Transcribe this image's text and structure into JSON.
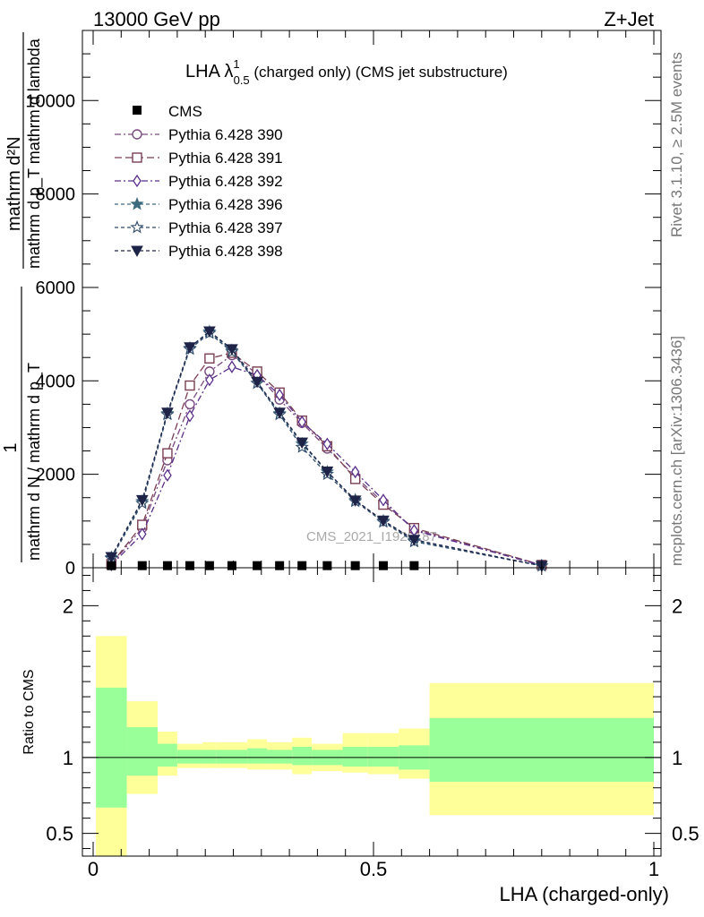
{
  "header": {
    "energy": "13000 GeV pp",
    "process": "Z+Jet"
  },
  "side": {
    "rivet": "Rivet 3.1.10, ≥ 2.5M events",
    "mcplots": "mcplots.cern.ch [arXiv:1306.3436]"
  },
  "colors": {
    "pythia390": "#7a4a80",
    "pythia391": "#7a3f52",
    "pythia392": "#5a2f8a",
    "pythia396": "#3e6a80",
    "pythia397": "#2e4a6a",
    "pythia398": "#1e2448",
    "band_inner": "#99ff99",
    "band_outer": "#ffff99"
  },
  "chart_data": [
    {
      "type": "line",
      "title_main": "LHA λ",
      "title_sup": "1",
      "title_sub": "0.5",
      "title_rest": " (charged only) (CMS jet substructure)",
      "ylabel_num": "mathrm d²N",
      "ylabel_den": "mathrm d p_T mathrm d lambda",
      "ylabel_prefix_num": "1",
      "ylabel_prefix_den": "mathrm d N / mathrm d p_T",
      "watermark": "CMS_2021_I1920187",
      "xlim": [
        0,
        1
      ],
      "ylim": [
        0,
        11500
      ],
      "yticks": [
        0,
        2000,
        4000,
        6000,
        8000,
        10000
      ],
      "ytick_labels": [
        "0",
        "2000",
        "4000",
        "6000",
        "8000",
        "10000"
      ],
      "x": [
        0.0325,
        0.0875,
        0.1325,
        0.1725,
        0.2075,
        0.2475,
        0.2925,
        0.3325,
        0.3725,
        0.4175,
        0.4675,
        0.5175,
        0.5725,
        0.8
      ],
      "cms": [
        45,
        45,
        45,
        45,
        45,
        45,
        45,
        45,
        45,
        45,
        45,
        45,
        45,
        null
      ],
      "series": [
        {
          "name": "Pythia 6.428 390",
          "color_key": "pythia390",
          "marker": "circle-open",
          "dash": "7,3,2,3",
          "values": [
            70,
            850,
            2300,
            3500,
            4200,
            4550,
            4150,
            3600,
            3100,
            2550,
            1950,
            1400,
            820,
            60
          ]
        },
        {
          "name": "Pythia 6.428 391",
          "color_key": "pythia391",
          "marker": "square-open",
          "dash": "8,4",
          "values": [
            80,
            920,
            2450,
            3900,
            4480,
            4600,
            4200,
            3750,
            3150,
            2600,
            1900,
            1350,
            850,
            60
          ]
        },
        {
          "name": "Pythia 6.428 392",
          "color_key": "pythia392",
          "marker": "diamond-open",
          "dash": "7,3,2,3",
          "values": [
            60,
            720,
            1980,
            3250,
            4020,
            4300,
            4120,
            3700,
            3120,
            2650,
            2050,
            1450,
            800,
            50
          ]
        },
        {
          "name": "Pythia 6.428 396",
          "color_key": "pythia396",
          "marker": "star-filled",
          "dash": "4,3",
          "values": [
            220,
            1420,
            3300,
            4700,
            5050,
            4650,
            3950,
            3300,
            2650,
            2050,
            1450,
            1000,
            580,
            40
          ]
        },
        {
          "name": "Pythia 6.428 397",
          "color_key": "pythia397",
          "marker": "star-open",
          "dash": "4,3",
          "values": [
            200,
            1380,
            3280,
            4680,
            5020,
            4620,
            3950,
            3280,
            2580,
            2000,
            1420,
            980,
            560,
            40
          ]
        },
        {
          "name": "Pythia 6.428 398",
          "color_key": "pythia398",
          "marker": "triangle-down-filled",
          "dash": "4,3",
          "values": [
            230,
            1450,
            3320,
            4720,
            5060,
            4680,
            3980,
            3320,
            2680,
            2060,
            1440,
            1010,
            600,
            40
          ]
        }
      ],
      "legend": {
        "cms_label": "CMS",
        "placement": "top-left"
      }
    },
    {
      "type": "area",
      "ylabel": "Ratio to CMS",
      "xlabel": "LHA (charged-only)",
      "xlim": [
        0,
        1
      ],
      "ylim": [
        0.35,
        2.25
      ],
      "yticks": [
        0.5,
        1,
        2
      ],
      "ytick_labels": [
        "0.5",
        "1",
        "2"
      ],
      "xticks": [
        0,
        0.5,
        1
      ],
      "xtick_labels": [
        "0",
        "0.5",
        "1"
      ],
      "bins": [
        {
          "lo": 0.005,
          "hi": 0.06,
          "outer": [
            0.35,
            1.8
          ],
          "inner": [
            0.67,
            1.46
          ]
        },
        {
          "lo": 0.06,
          "hi": 0.115,
          "outer": [
            0.76,
            1.37
          ],
          "inner": [
            0.88,
            1.2
          ]
        },
        {
          "lo": 0.115,
          "hi": 0.15,
          "outer": [
            0.88,
            1.17
          ],
          "inner": [
            0.94,
            1.09
          ]
        },
        {
          "lo": 0.15,
          "hi": 0.195,
          "outer": [
            0.93,
            1.09
          ],
          "inner": [
            0.96,
            1.05
          ]
        },
        {
          "lo": 0.195,
          "hi": 0.22,
          "outer": [
            0.93,
            1.1
          ],
          "inner": [
            0.96,
            1.05
          ]
        },
        {
          "lo": 0.22,
          "hi": 0.275,
          "outer": [
            0.93,
            1.1
          ],
          "inner": [
            0.96,
            1.05
          ]
        },
        {
          "lo": 0.275,
          "hi": 0.31,
          "outer": [
            0.92,
            1.12
          ],
          "inner": [
            0.96,
            1.06
          ]
        },
        {
          "lo": 0.31,
          "hi": 0.355,
          "outer": [
            0.92,
            1.1
          ],
          "inner": [
            0.96,
            1.05
          ]
        },
        {
          "lo": 0.355,
          "hi": 0.39,
          "outer": [
            0.89,
            1.13
          ],
          "inner": [
            0.95,
            1.07
          ]
        },
        {
          "lo": 0.39,
          "hi": 0.445,
          "outer": [
            0.91,
            1.09
          ],
          "inner": [
            0.95,
            1.05
          ]
        },
        {
          "lo": 0.445,
          "hi": 0.49,
          "outer": [
            0.9,
            1.16
          ],
          "inner": [
            0.94,
            1.07
          ]
        },
        {
          "lo": 0.49,
          "hi": 0.545,
          "outer": [
            0.89,
            1.16
          ],
          "inner": [
            0.94,
            1.07
          ]
        },
        {
          "lo": 0.545,
          "hi": 0.6,
          "outer": [
            0.86,
            1.19
          ],
          "inner": [
            0.92,
            1.08
          ]
        },
        {
          "lo": 0.6,
          "hi": 1.0,
          "outer": [
            0.62,
            1.49
          ],
          "inner": [
            0.84,
            1.26
          ]
        }
      ]
    }
  ]
}
